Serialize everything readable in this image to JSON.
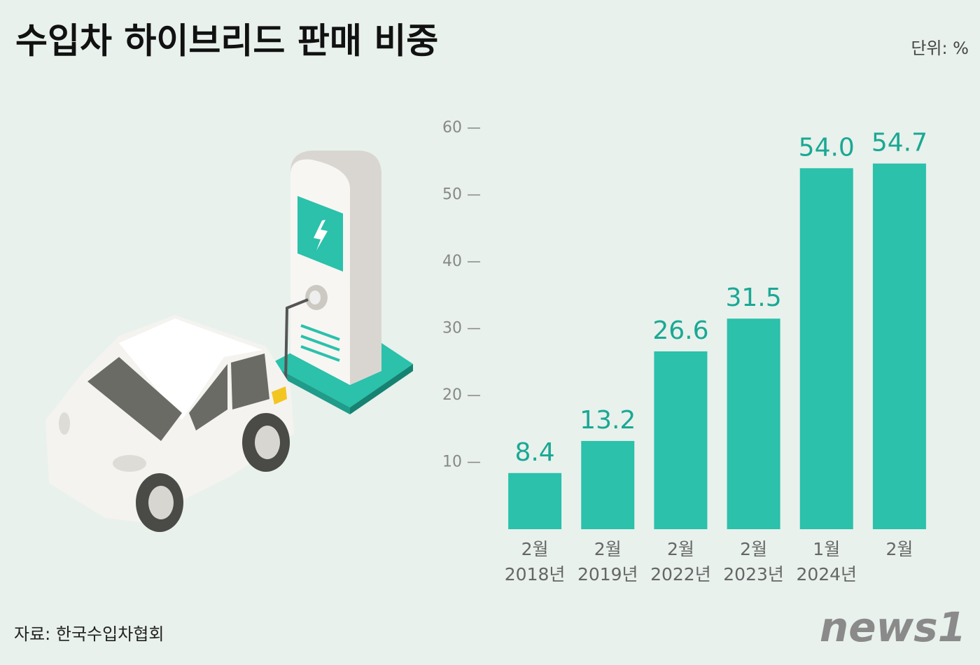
{
  "chart_data": {
    "type": "bar",
    "title": "수입차 하이브리드 판매 비중",
    "unit": "단위: %",
    "source": "자료: 한국수입차협회",
    "logo": "news1",
    "months": [
      "2월",
      "2월",
      "2월",
      "2월",
      "1월",
      "2월"
    ],
    "years": [
      "2018년",
      "2019년",
      "2022년",
      "2023년",
      "2024년",
      null
    ],
    "values": [
      8.4,
      13.2,
      26.6,
      31.5,
      54.0,
      54.7
    ],
    "value_labels": [
      "8.4",
      "13.2",
      "26.6",
      "31.5",
      "54.0",
      "54.7"
    ],
    "color": "#2bc1ab",
    "ylim": [
      0,
      60
    ],
    "yticks": [
      10,
      20,
      30,
      40,
      50,
      60
    ]
  }
}
